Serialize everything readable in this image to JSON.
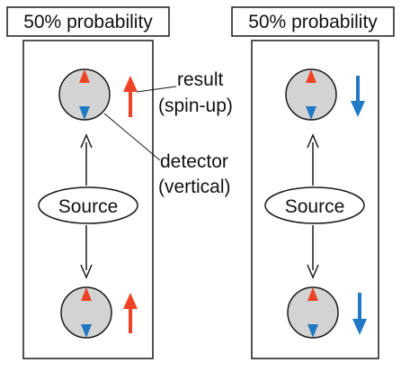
{
  "panels": [
    {
      "header": "50% probability",
      "source_label": "Source",
      "top_result": "up",
      "bottom_result": "up"
    },
    {
      "header": "50% probability",
      "source_label": "Source",
      "top_result": "down",
      "bottom_result": "down"
    }
  ],
  "annotations": {
    "result_line1": "result",
    "result_line2": "(spin-up)",
    "detector_line1": "detector",
    "detector_line2": "(vertical)"
  },
  "colors": {
    "spin_up": "#ee4225",
    "spin_down": "#2178c4",
    "detector_fill": "#d3d3d3",
    "stroke": "#1a1a1a"
  }
}
